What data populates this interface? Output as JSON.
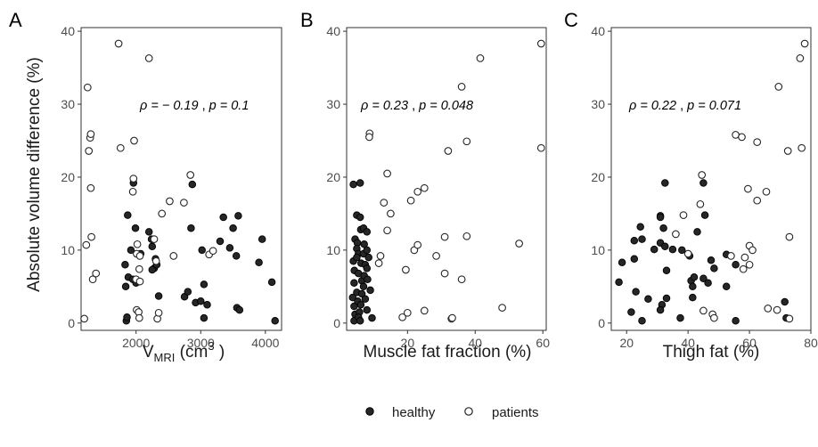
{
  "figure": {
    "ylabel": "Absolute volume difference (%)",
    "legend": {
      "position": "bottom-center",
      "items": [
        {
          "label": "healthy",
          "marker": "filled-circle",
          "color": "#262626"
        },
        {
          "label": "patients",
          "marker": "open-circle",
          "color": "#262626"
        }
      ]
    }
  },
  "chart_data": [
    {
      "type": "scatter",
      "panel": "A",
      "xlabel": "V",
      "xlabel_sub": "MRI",
      "xlabel_unit": " (cm",
      "xlabel_sup": "3",
      "xlabel_close": " )",
      "annotation": {
        "rho": "ρ = − 0.19",
        "p": "p = 0.1"
      },
      "xlim": [
        1150,
        4250
      ],
      "ylim": [
        -1,
        40.5
      ],
      "xticks": [
        2000,
        3000,
        4000
      ],
      "yticks": [
        0,
        10,
        20,
        30,
        40
      ],
      "grid": false,
      "series": [
        {
          "name": "healthy",
          "filled": true,
          "points": [
            [
              1850,
              0.3
            ],
            [
              1860,
              0.8
            ],
            [
              1840,
              5
            ],
            [
              1880,
              6.3
            ],
            [
              1870,
              14.8
            ],
            [
              1830,
              8.0
            ],
            [
              1960,
              19.2
            ],
            [
              1950,
              6.0
            ],
            [
              2000,
              5.5
            ],
            [
              1990,
              13.0
            ],
            [
              1920,
              10.0
            ],
            [
              2070,
              9.5
            ],
            [
              2200,
              12.5
            ],
            [
              2250,
              10.5
            ],
            [
              2300,
              8.8
            ],
            [
              2280,
              7.5
            ],
            [
              2250,
              7.3
            ],
            [
              2320,
              8.0
            ],
            [
              2350,
              3.7
            ],
            [
              2240,
              11.5
            ],
            [
              2750,
              3.6
            ],
            [
              2800,
              4.3
            ],
            [
              2850,
              13.0
            ],
            [
              2870,
              19.0
            ],
            [
              2920,
              2.8
            ],
            [
              3000,
              3.0
            ],
            [
              3050,
              5.3
            ],
            [
              3050,
              0.7
            ],
            [
              3020,
              10.0
            ],
            [
              3100,
              2.5
            ],
            [
              3300,
              11.2
            ],
            [
              3350,
              14.5
            ],
            [
              3450,
              10.3
            ],
            [
              3500,
              13.0
            ],
            [
              3550,
              9.2
            ],
            [
              3580,
              14.7
            ],
            [
              3560,
              2.1
            ],
            [
              3600,
              1.8
            ],
            [
              3900,
              8.3
            ],
            [
              3950,
              11.5
            ],
            [
              4100,
              5.6
            ],
            [
              4150,
              0.3
            ]
          ]
        },
        {
          "name": "patients",
          "filled": false,
          "points": [
            [
              1200,
              0.6
            ],
            [
              1230,
              10.7
            ],
            [
              1250,
              32.3
            ],
            [
              1270,
              23.6
            ],
            [
              1290,
              25.4
            ],
            [
              1300,
              25.9
            ],
            [
              1300,
              18.5
            ],
            [
              1310,
              11.8
            ],
            [
              1330,
              6.0
            ],
            [
              1380,
              6.8
            ],
            [
              1730,
              38.3
            ],
            [
              1760,
              24.0
            ],
            [
              1950,
              18.0
            ],
            [
              1970,
              25.0
            ],
            [
              1960,
              19.8
            ],
            [
              2020,
              10.8
            ],
            [
              2010,
              9.5
            ],
            [
              2060,
              9.2
            ],
            [
              2050,
              7.4
            ],
            [
              2000,
              6.0
            ],
            [
              2060,
              5.7
            ],
            [
              2010,
              1.8
            ],
            [
              2040,
              1.5
            ],
            [
              2050,
              0.7
            ],
            [
              2200,
              36.3
            ],
            [
              2280,
              11.5
            ],
            [
              2310,
              8.5
            ],
            [
              2330,
              0.6
            ],
            [
              2350,
              1.4
            ],
            [
              2400,
              15.0
            ],
            [
              2520,
              16.7
            ],
            [
              2580,
              9.2
            ],
            [
              2740,
              16.5
            ],
            [
              2840,
              20.3
            ],
            [
              3130,
              9.4
            ],
            [
              3190,
              9.9
            ]
          ]
        }
      ]
    },
    {
      "type": "scatter",
      "panel": "B",
      "xlabel": "Muscle fat fraction (%)",
      "annotation": {
        "rho": "ρ = 0.23",
        "p": "p = 0.048"
      },
      "xlim": [
        2,
        61
      ],
      "ylim": [
        -1,
        40.5
      ],
      "xticks": [
        20,
        40,
        60
      ],
      "yticks": [
        0,
        10,
        20,
        30,
        40
      ],
      "grid": false,
      "series": [
        {
          "name": "healthy",
          "filled": true,
          "points": [
            [
              4.0,
              19.0
            ],
            [
              4.5,
              11.5
            ],
            [
              4.0,
              8.5
            ],
            [
              4.3,
              7.2
            ],
            [
              4.2,
              5.5
            ],
            [
              3.8,
              3.5
            ],
            [
              4.2,
              2.3
            ],
            [
              4.5,
              1.2
            ],
            [
              4.2,
              0.3
            ],
            [
              5.0,
              14.8
            ],
            [
              5.2,
              11.0
            ],
            [
              5.0,
              10.2
            ],
            [
              5.5,
              9.5
            ],
            [
              5.0,
              9.0
            ],
            [
              5.5,
              6.8
            ],
            [
              5.0,
              4.2
            ],
            [
              5.3,
              3.0
            ],
            [
              5.8,
              1.5
            ],
            [
              5.5,
              0.8
            ],
            [
              6.0,
              19.2
            ],
            [
              6.0,
              14.5
            ],
            [
              6.2,
              12.8
            ],
            [
              6.3,
              8.2
            ],
            [
              6.5,
              5.8
            ],
            [
              6.5,
              4.0
            ],
            [
              6.2,
              2.5
            ],
            [
              6.0,
              0.3
            ],
            [
              7.0,
              13.0
            ],
            [
              7.2,
              10.8
            ],
            [
              7.0,
              9.5
            ],
            [
              7.5,
              8.0
            ],
            [
              7.2,
              6.5
            ],
            [
              7.0,
              5.0
            ],
            [
              7.5,
              3.3
            ],
            [
              8.0,
              12.5
            ],
            [
              8.0,
              10.0
            ],
            [
              8.0,
              7.5
            ],
            [
              8.2,
              6.0
            ],
            [
              8.0,
              1.8
            ],
            [
              8.5,
              9.0
            ],
            [
              9.0,
              4.5
            ],
            [
              9.5,
              0.7
            ]
          ]
        },
        {
          "name": "patients",
          "filled": false,
          "points": [
            [
              8.8,
              26.0
            ],
            [
              8.7,
              25.5
            ],
            [
              11.5,
              8.2
            ],
            [
              12.0,
              9.2
            ],
            [
              13.0,
              16.5
            ],
            [
              14.0,
              20.5
            ],
            [
              14.0,
              12.7
            ],
            [
              15.0,
              15.0
            ],
            [
              18.5,
              0.8
            ],
            [
              19.5,
              7.3
            ],
            [
              20.0,
              1.4
            ],
            [
              21.0,
              16.8
            ],
            [
              22.0,
              10.0
            ],
            [
              23.0,
              10.7
            ],
            [
              23.0,
              18.0
            ],
            [
              25.0,
              18.5
            ],
            [
              25.0,
              1.7
            ],
            [
              28.5,
              9.2
            ],
            [
              31.0,
              11.8
            ],
            [
              31.0,
              6.8
            ],
            [
              32.0,
              23.6
            ],
            [
              33.0,
              0.6
            ],
            [
              33.2,
              0.7
            ],
            [
              36.0,
              32.4
            ],
            [
              36.0,
              6.0
            ],
            [
              37.5,
              24.9
            ],
            [
              37.5,
              11.9
            ],
            [
              41.5,
              36.3
            ],
            [
              48.0,
              2.1
            ],
            [
              53.0,
              10.9
            ],
            [
              59.5,
              38.3
            ],
            [
              59.5,
              24.0
            ]
          ]
        }
      ]
    },
    {
      "type": "scatter",
      "panel": "C",
      "xlabel": "Thigh fat (%)",
      "annotation": {
        "rho": "ρ = 0.22",
        "p": "p = 0.071"
      },
      "xlim": [
        15,
        80
      ],
      "ylim": [
        -1,
        40.5
      ],
      "xticks": [
        20,
        40,
        60,
        80
      ],
      "yticks": [
        0,
        10,
        20,
        30,
        40
      ],
      "grid": false,
      "series": [
        {
          "name": "healthy",
          "filled": true,
          "points": [
            [
              17.5,
              5.6
            ],
            [
              18.5,
              8.3
            ],
            [
              21.5,
              1.5
            ],
            [
              22.5,
              11.3
            ],
            [
              22.5,
              8.8
            ],
            [
              23.0,
              4.3
            ],
            [
              24.5,
              13.2
            ],
            [
              25.0,
              11.5
            ],
            [
              25.0,
              0.3
            ],
            [
              27.0,
              3.3
            ],
            [
              29.0,
              10.1
            ],
            [
              31.0,
              14.7
            ],
            [
              31.0,
              14.5
            ],
            [
              31.0,
              11.0
            ],
            [
              31.5,
              2.5
            ],
            [
              31.0,
              1.8
            ],
            [
              32.0,
              13.0
            ],
            [
              32.5,
              10.5
            ],
            [
              32.5,
              19.2
            ],
            [
              33.0,
              7.2
            ],
            [
              33.0,
              3.4
            ],
            [
              35.0,
              10.1
            ],
            [
              37.5,
              0.7
            ],
            [
              38.0,
              10.0
            ],
            [
              40.5,
              9.2
            ],
            [
              41.0,
              5.8
            ],
            [
              41.5,
              5.0
            ],
            [
              41.5,
              3.5
            ],
            [
              42.0,
              6.3
            ],
            [
              43.0,
              12.5
            ],
            [
              45.0,
              19.2
            ],
            [
              45.5,
              14.8
            ],
            [
              45.0,
              6.1
            ],
            [
              46.5,
              5.5
            ],
            [
              47.5,
              8.6
            ],
            [
              48.5,
              7.5
            ],
            [
              52.5,
              9.4
            ],
            [
              52.5,
              5.0
            ],
            [
              55.5,
              8.0
            ],
            [
              55.5,
              0.3
            ],
            [
              71.5,
              2.9
            ],
            [
              72.0,
              0.7
            ]
          ]
        },
        {
          "name": "patients",
          "filled": false,
          "points": [
            [
              36.0,
              12.2
            ],
            [
              38.5,
              14.8
            ],
            [
              40.0,
              9.5
            ],
            [
              44.0,
              16.3
            ],
            [
              44.5,
              20.3
            ],
            [
              45.0,
              1.7
            ],
            [
              48.0,
              1.2
            ],
            [
              48.5,
              0.7
            ],
            [
              54.0,
              9.2
            ],
            [
              55.5,
              25.8
            ],
            [
              57.5,
              25.5
            ],
            [
              58.5,
              9.0
            ],
            [
              58.0,
              7.4
            ],
            [
              59.5,
              18.4
            ],
            [
              60.0,
              10.6
            ],
            [
              60.0,
              8.0
            ],
            [
              61.0,
              10.0
            ],
            [
              62.5,
              24.8
            ],
            [
              62.5,
              16.8
            ],
            [
              65.5,
              18.0
            ],
            [
              66.0,
              2.0
            ],
            [
              69.0,
              1.8
            ],
            [
              69.5,
              32.4
            ],
            [
              72.5,
              23.6
            ],
            [
              73.0,
              11.8
            ],
            [
              73.0,
              0.6
            ],
            [
              76.5,
              36.3
            ],
            [
              77.0,
              24.0
            ],
            [
              78.0,
              38.3
            ]
          ]
        }
      ]
    }
  ]
}
